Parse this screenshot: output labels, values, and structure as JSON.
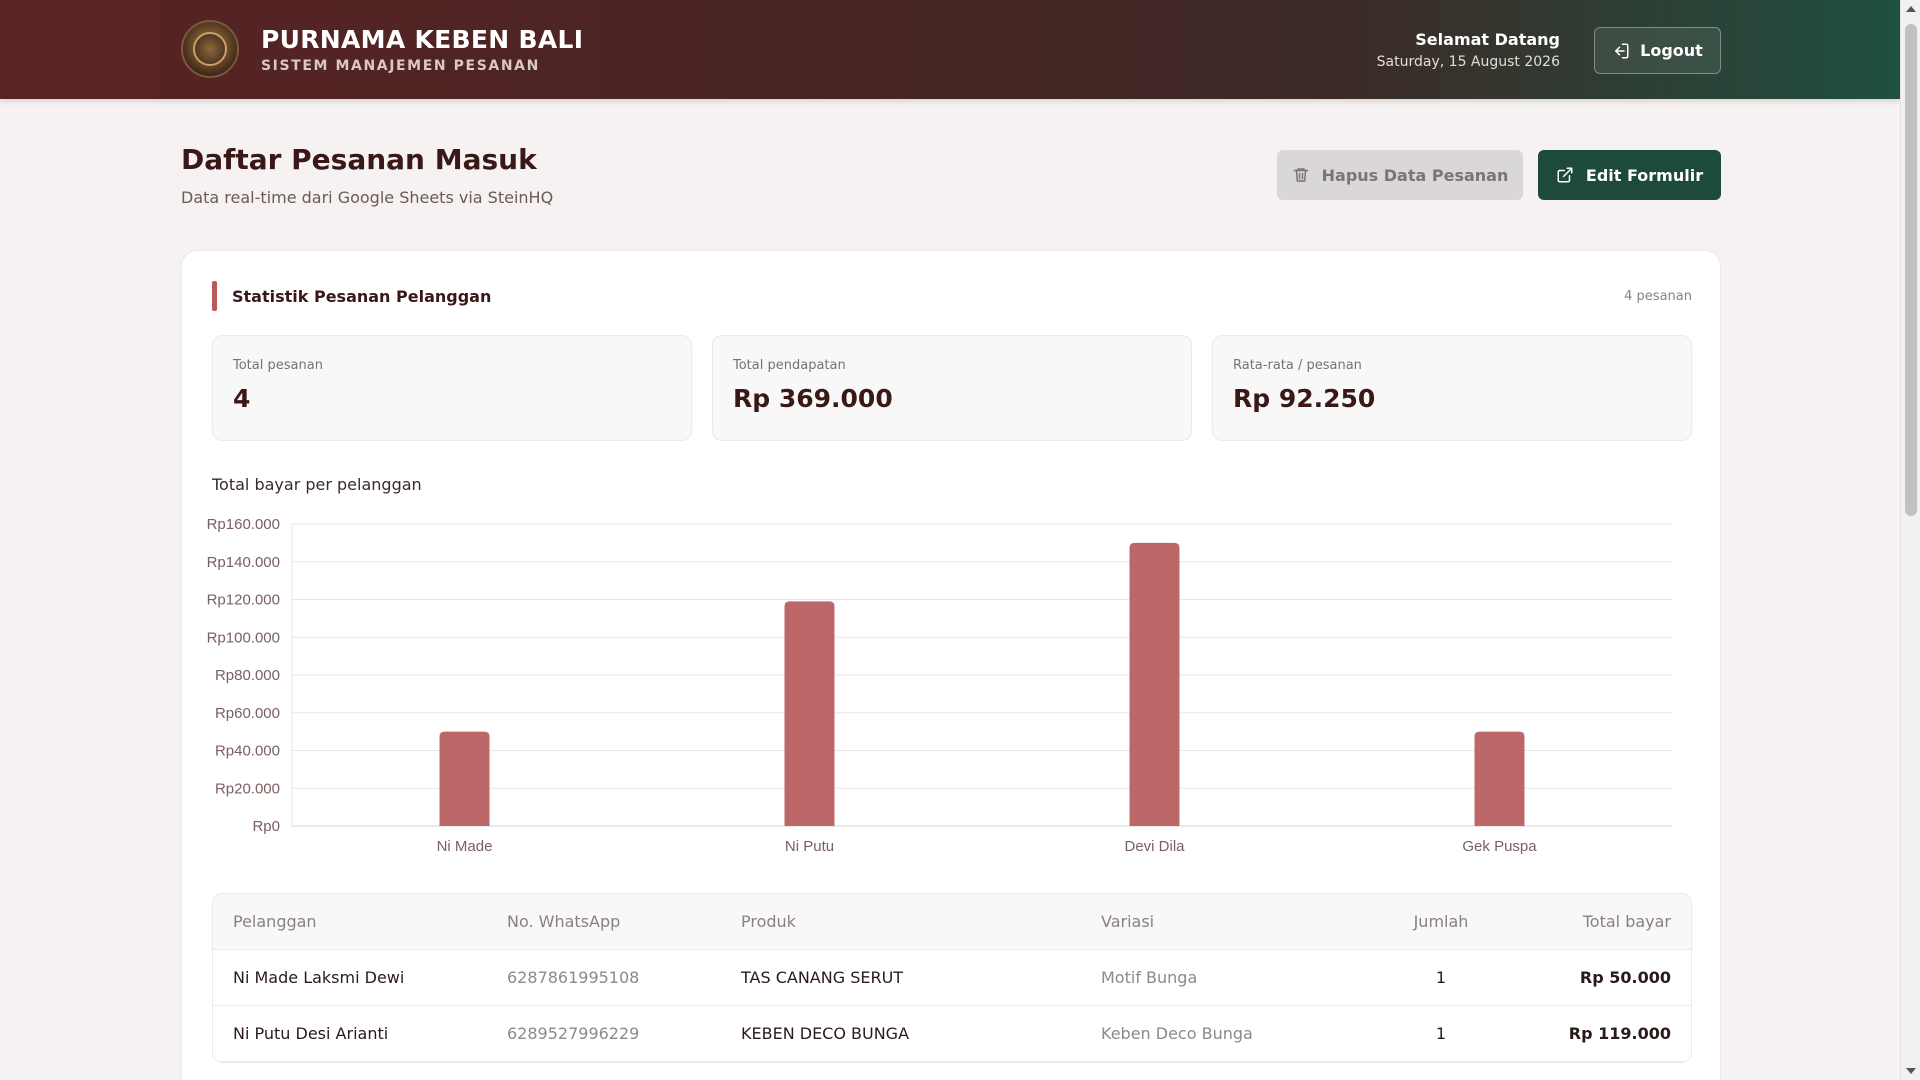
{
  "header": {
    "brand_title": "PURNAMA KEBEN BALI",
    "brand_subtitle": "SISTEM MANAJEMEN PESANAN",
    "welcome_title": "Selamat Datang",
    "welcome_date": "Saturday, 15 August 2026",
    "logout_label": "Logout"
  },
  "page": {
    "title": "Daftar Pesanan Masuk",
    "subtitle": "Data real-time dari Google Sheets via SteinHQ",
    "delete_button": "Hapus Data Pesanan",
    "edit_button": "Edit Formulir"
  },
  "stats": {
    "title": "Statistik Pesanan Pelanggan",
    "count_label": "4 pesanan",
    "cards": [
      {
        "label": "Total pesanan",
        "value": "4"
      },
      {
        "label": "Total pendapatan",
        "value": "Rp 369.000"
      },
      {
        "label": "Rata-rata / pesanan",
        "value": "Rp 92.250"
      }
    ]
  },
  "chart_data": {
    "type": "bar",
    "title": "Total bayar per pelanggan",
    "categories": [
      "Ni Made",
      "Ni Putu",
      "Devi Dila",
      "Gek Puspa"
    ],
    "values": [
      50000,
      119000,
      150000,
      50000
    ],
    "ylim": [
      0,
      160000
    ],
    "yticks": [
      "Rp0",
      "Rp20.000",
      "Rp40.000",
      "Rp60.000",
      "Rp80.000",
      "Rp100.000",
      "Rp120.000",
      "Rp140.000",
      "Rp160.000"
    ],
    "grid": true,
    "bar_color": "#bd6868"
  },
  "table": {
    "headers": [
      "Pelanggan",
      "No. WhatsApp",
      "Produk",
      "Variasi",
      "Jumlah",
      "Total bayar"
    ],
    "rows": [
      [
        "Ni Made Laksmi Dewi",
        "6287861995108",
        "TAS CANANG SERUT",
        "Motif Bunga",
        "1",
        "Rp 50.000"
      ],
      [
        "Ni Putu Desi Arianti",
        "6289527996229",
        "KEBEN DECO BUNGA",
        "Keben Deco Bunga",
        "1",
        "Rp 119.000"
      ]
    ]
  },
  "colors": {
    "header_start": "#5a2323",
    "header_end": "#1f5040",
    "accent": "#b95a5a",
    "primary_button": "#1d4a3a"
  }
}
